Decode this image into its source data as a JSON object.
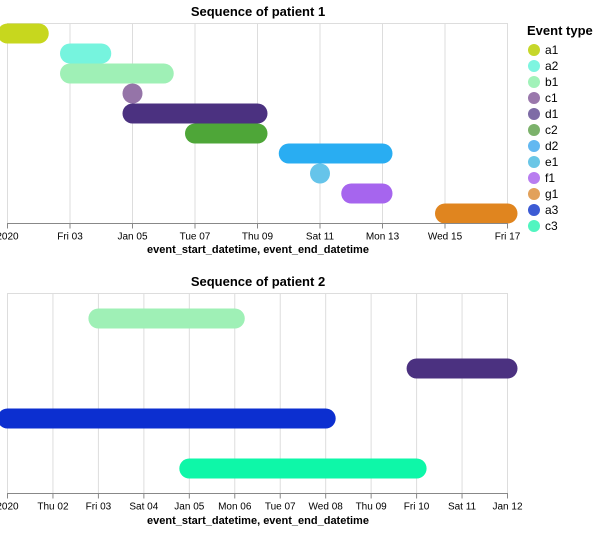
{
  "legend": {
    "title": "Event type",
    "entries": [
      {
        "label": "a1",
        "color": "#c6d72a"
      },
      {
        "label": "a2",
        "color": "#7ef5e0"
      },
      {
        "label": "b1",
        "color": "#a1f2b9"
      },
      {
        "label": "c1",
        "color": "#9a78ac"
      },
      {
        "label": "d1",
        "color": "#7e6ca6"
      },
      {
        "label": "c2",
        "color": "#7cb26b"
      },
      {
        "label": "d2",
        "color": "#63b8f1"
      },
      {
        "label": "e1",
        "color": "#6ac6e6"
      },
      {
        "label": "f1",
        "color": "#b87df0"
      },
      {
        "label": "g1",
        "color": "#e2a15b"
      },
      {
        "label": "a3",
        "color": "#3c5bd4"
      },
      {
        "label": "c3",
        "color": "#52f5c0"
      }
    ]
  },
  "chart_data": [
    {
      "type": "gantt",
      "title": "Sequence of patient 1",
      "xlabel": "event_start_datetime, event_end_datetime",
      "x_domain": [
        "2020-01-01",
        "2020-01-17"
      ],
      "x_ticks": [
        {
          "date": "2020-01-01",
          "label": "2020"
        },
        {
          "date": "2020-01-03",
          "label": "Fri 03"
        },
        {
          "date": "2020-01-05",
          "label": "Jan 05"
        },
        {
          "date": "2020-01-07",
          "label": "Tue 07"
        },
        {
          "date": "2020-01-09",
          "label": "Thu 09"
        },
        {
          "date": "2020-01-11",
          "label": "Sat 11"
        },
        {
          "date": "2020-01-13",
          "label": "Mon 13"
        },
        {
          "date": "2020-01-15",
          "label": "Wed 15"
        },
        {
          "date": "2020-01-17",
          "label": "Fri 17"
        }
      ],
      "grid": true,
      "rows": [
        "a1",
        "a2",
        "b1",
        "c1",
        "d1",
        "c2",
        "d2",
        "e1",
        "f1",
        "g1"
      ],
      "events": [
        {
          "type": "a1",
          "start": "2020-01-01",
          "end": "2020-01-02",
          "color": "#c7d71e"
        },
        {
          "type": "a2",
          "start": "2020-01-03",
          "end": "2020-01-04",
          "color": "#76f4de"
        },
        {
          "type": "b1",
          "start": "2020-01-03",
          "end": "2020-01-06",
          "color": "#9ff0b6"
        },
        {
          "type": "c1",
          "start": "2020-01-05",
          "end": "2020-01-05",
          "color": "#9574a8"
        },
        {
          "type": "d1",
          "start": "2020-01-05",
          "end": "2020-01-09",
          "color": "#4b3180"
        },
        {
          "type": "c2",
          "start": "2020-01-07",
          "end": "2020-01-09",
          "color": "#4ea638"
        },
        {
          "type": "d2",
          "start": "2020-01-10",
          "end": "2020-01-13",
          "color": "#29adf2"
        },
        {
          "type": "e1",
          "start": "2020-01-11",
          "end": "2020-01-11",
          "color": "#66c4ea"
        },
        {
          "type": "f1",
          "start": "2020-01-12",
          "end": "2020-01-13",
          "color": "#a665ee"
        },
        {
          "type": "g1",
          "start": "2020-01-15",
          "end": "2020-01-17",
          "color": "#e0851f"
        }
      ]
    },
    {
      "type": "gantt",
      "title": "Sequence of patient 2",
      "xlabel": "event_start_datetime, event_end_datetime",
      "x_domain": [
        "2020-01-01",
        "2020-01-12"
      ],
      "x_ticks": [
        {
          "date": "2020-01-01",
          "label": "2020"
        },
        {
          "date": "2020-01-02",
          "label": "Thu 02"
        },
        {
          "date": "2020-01-03",
          "label": "Fri 03"
        },
        {
          "date": "2020-01-04",
          "label": "Sat 04"
        },
        {
          "date": "2020-01-05",
          "label": "Jan 05"
        },
        {
          "date": "2020-01-06",
          "label": "Mon 06"
        },
        {
          "date": "2020-01-07",
          "label": "Tue 07"
        },
        {
          "date": "2020-01-08",
          "label": "Wed 08"
        },
        {
          "date": "2020-01-09",
          "label": "Thu 09"
        },
        {
          "date": "2020-01-10",
          "label": "Fri 10"
        },
        {
          "date": "2020-01-11",
          "label": "Sat 11"
        },
        {
          "date": "2020-01-12",
          "label": "Jan 12"
        }
      ],
      "grid": true,
      "rows": [
        "b1",
        "d1",
        "a3",
        "c3"
      ],
      "events": [
        {
          "type": "b1",
          "start": "2020-01-03",
          "end": "2020-01-06",
          "color": "#9ff0b6"
        },
        {
          "type": "d1",
          "start": "2020-01-10",
          "end": "2020-01-12",
          "color": "#4b3180"
        },
        {
          "type": "a3",
          "start": "2020-01-01",
          "end": "2020-01-08",
          "color": "#0c2fd0"
        },
        {
          "type": "c3",
          "start": "2020-01-05",
          "end": "2020-01-10",
          "color": "#0ef7a8"
        }
      ]
    }
  ]
}
